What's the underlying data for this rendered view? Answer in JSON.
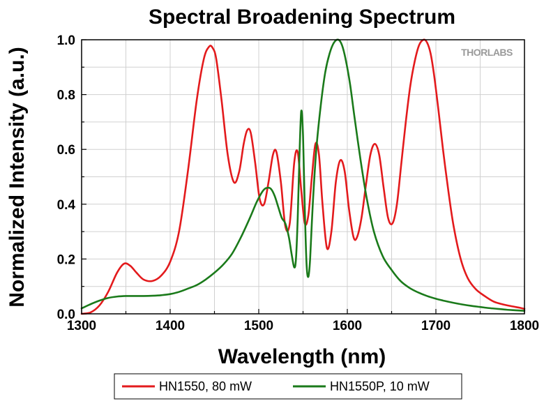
{
  "chart_data": {
    "type": "line",
    "title": "Spectral Broadening Spectrum",
    "xlabel": "Wavelength (nm)",
    "ylabel": "Normalized Intensity (a.u.)",
    "xlim": [
      1300,
      1800
    ],
    "ylim": [
      0,
      1.0
    ],
    "xticks": [
      1300,
      1400,
      1500,
      1600,
      1700,
      1800
    ],
    "xtick_labels": [
      "1300",
      "1400",
      "1500",
      "1600",
      "1700",
      "1800"
    ],
    "yticks": [
      0,
      0.2,
      0.4,
      0.6,
      0.8,
      1.0
    ],
    "ytick_labels": [
      "0.0",
      "0.2",
      "0.4",
      "0.6",
      "0.8",
      "1.0"
    ],
    "grid": true,
    "legend_position": "bottom",
    "watermark": "THORLABS",
    "series": [
      {
        "name": "HN1550, 80 mW",
        "color": "#e31a1c",
        "x": [
          1300,
          1310,
          1320,
          1330,
          1340,
          1348,
          1355,
          1362,
          1370,
          1380,
          1390,
          1400,
          1410,
          1420,
          1430,
          1438,
          1444,
          1448,
          1452,
          1458,
          1465,
          1472,
          1478,
          1483,
          1487,
          1491,
          1496,
          1501,
          1506,
          1511,
          1516,
          1520,
          1525,
          1530,
          1535,
          1540,
          1544,
          1548,
          1552,
          1556,
          1560,
          1564,
          1568,
          1572,
          1577,
          1582,
          1587,
          1592,
          1597,
          1602,
          1607,
          1611,
          1616,
          1621,
          1626,
          1631,
          1636,
          1641,
          1646,
          1651,
          1656,
          1661,
          1666,
          1671,
          1676,
          1681,
          1686,
          1690,
          1694,
          1698,
          1703,
          1708,
          1714,
          1720,
          1728,
          1736,
          1745,
          1755,
          1765,
          1775,
          1785,
          1795,
          1800
        ],
        "y": [
          0.0,
          0.005,
          0.03,
          0.08,
          0.15,
          0.183,
          0.175,
          0.15,
          0.125,
          0.12,
          0.14,
          0.19,
          0.3,
          0.52,
          0.78,
          0.93,
          0.975,
          0.97,
          0.93,
          0.78,
          0.58,
          0.48,
          0.52,
          0.62,
          0.67,
          0.66,
          0.55,
          0.42,
          0.4,
          0.48,
          0.58,
          0.59,
          0.48,
          0.32,
          0.33,
          0.55,
          0.59,
          0.45,
          0.33,
          0.36,
          0.5,
          0.62,
          0.58,
          0.4,
          0.24,
          0.3,
          0.48,
          0.56,
          0.52,
          0.38,
          0.28,
          0.28,
          0.35,
          0.47,
          0.58,
          0.62,
          0.58,
          0.46,
          0.35,
          0.33,
          0.4,
          0.55,
          0.7,
          0.83,
          0.92,
          0.98,
          1.0,
          0.99,
          0.95,
          0.87,
          0.74,
          0.6,
          0.45,
          0.32,
          0.2,
          0.13,
          0.09,
          0.065,
          0.045,
          0.035,
          0.028,
          0.022,
          0.018
        ]
      },
      {
        "name": "HN1550P, 10 mW",
        "color": "#1a7a1a",
        "x": [
          1300,
          1310,
          1320,
          1330,
          1340,
          1350,
          1360,
          1370,
          1380,
          1390,
          1400,
          1410,
          1420,
          1430,
          1440,
          1450,
          1460,
          1470,
          1480,
          1490,
          1498,
          1505,
          1510,
          1514,
          1518,
          1522,
          1526,
          1530,
          1534,
          1537,
          1540,
          1542,
          1544,
          1546,
          1548,
          1550,
          1552,
          1554,
          1556,
          1558,
          1561,
          1565,
          1570,
          1575,
          1580,
          1585,
          1590,
          1594,
          1598,
          1603,
          1608,
          1615,
          1622,
          1630,
          1640,
          1650,
          1660,
          1670,
          1680,
          1690,
          1700,
          1710,
          1720,
          1730,
          1740,
          1750,
          1760,
          1770,
          1780,
          1790,
          1800
        ],
        "y": [
          0.02,
          0.035,
          0.048,
          0.058,
          0.063,
          0.065,
          0.065,
          0.065,
          0.066,
          0.068,
          0.072,
          0.08,
          0.092,
          0.105,
          0.125,
          0.15,
          0.18,
          0.22,
          0.28,
          0.35,
          0.41,
          0.45,
          0.46,
          0.455,
          0.43,
          0.39,
          0.35,
          0.33,
          0.28,
          0.22,
          0.17,
          0.2,
          0.35,
          0.58,
          0.74,
          0.65,
          0.38,
          0.18,
          0.135,
          0.2,
          0.4,
          0.6,
          0.76,
          0.88,
          0.95,
          0.99,
          1.0,
          0.98,
          0.93,
          0.84,
          0.72,
          0.56,
          0.42,
          0.3,
          0.21,
          0.16,
          0.12,
          0.095,
          0.078,
          0.065,
          0.055,
          0.047,
          0.04,
          0.034,
          0.029,
          0.025,
          0.021,
          0.018,
          0.015,
          0.013,
          0.011
        ]
      }
    ]
  }
}
